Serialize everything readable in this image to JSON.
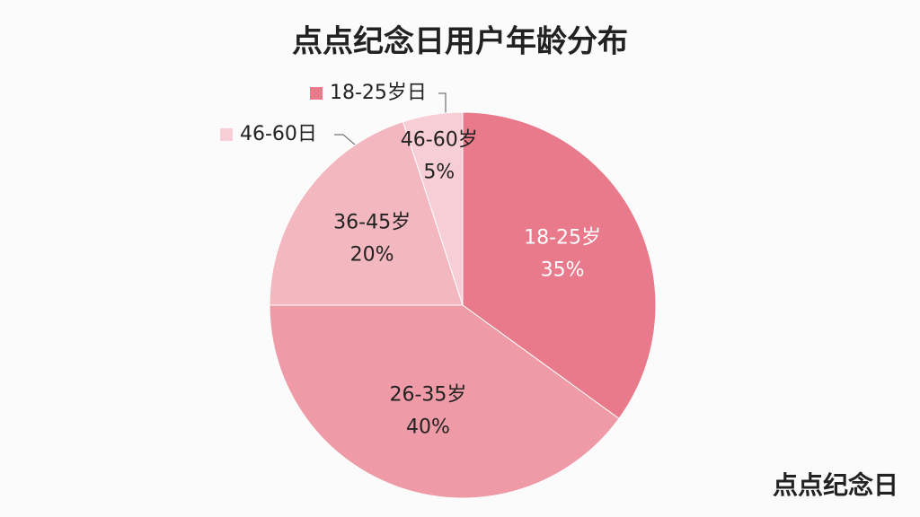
{
  "chart_data": {
    "type": "pie",
    "title": "点点纪念日用户年龄分布",
    "categories": [
      "18-25岁",
      "26-35岁",
      "36-45岁",
      "46-60岁"
    ],
    "values": [
      35,
      40,
      20,
      5
    ],
    "value_labels": [
      "35%",
      "40%",
      "20%",
      "5%"
    ],
    "colors": [
      "#e87a8b",
      "#ee9ba7",
      "#f3b7c0",
      "#f7ced5"
    ],
    "legend": [
      {
        "label": "18-25岁日",
        "color": "#e87a8b"
      },
      {
        "label": "46-60日",
        "color": "#f7ced5"
      }
    ]
  },
  "watermark": "点点纪念日"
}
